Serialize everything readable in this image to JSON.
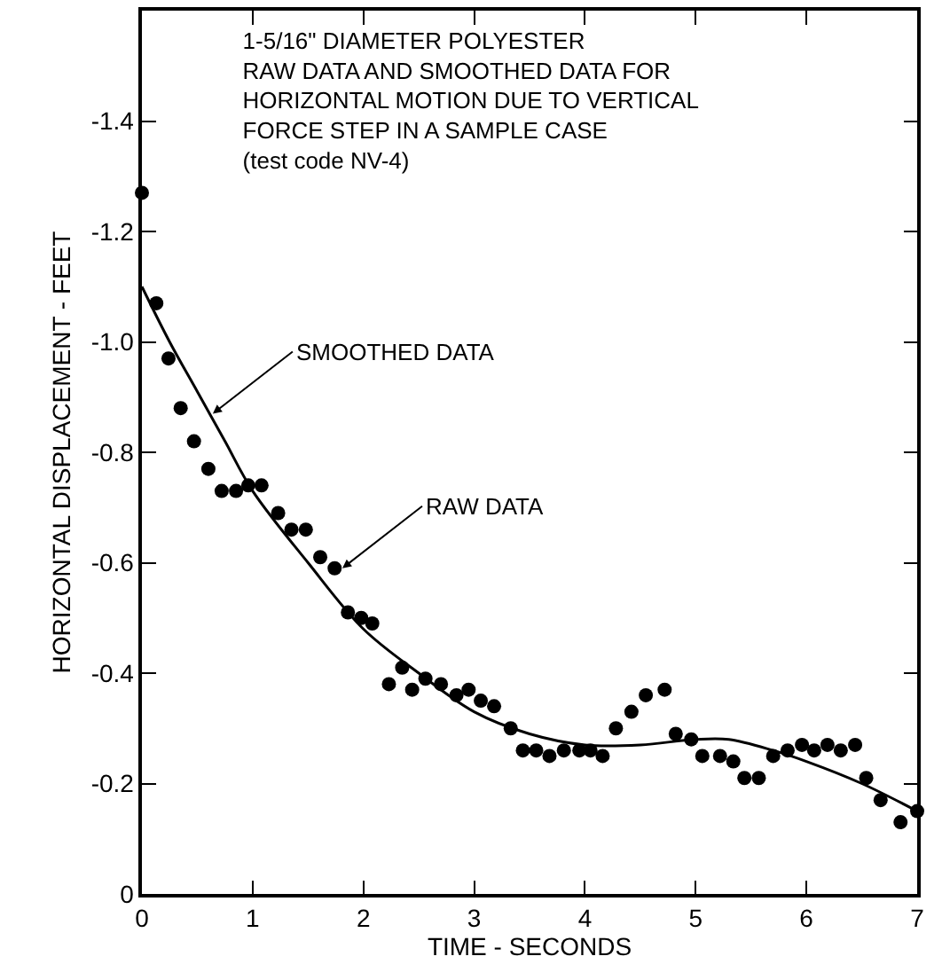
{
  "chart_data": {
    "type": "scatter",
    "title": "1-5/16\" DIAMETER POLYESTER\nRAW DATA AND SMOOTHED DATA FOR\nHORIZONTAL MOTION DUE TO VERTICAL\nFORCE STEP IN A SAMPLE CASE\n(test code NV-4)",
    "xlabel": "TIME - SECONDS",
    "ylabel": "HORIZONTAL DISPLACEMENT - FEET",
    "xlim": [
      0,
      7
    ],
    "ylim": [
      0,
      -1.6
    ],
    "xticks": [
      0,
      1,
      2,
      3,
      4,
      5,
      6,
      7
    ],
    "yticks": [
      0,
      -0.2,
      -0.4,
      -0.6,
      -0.8,
      {
        "value": -1.0,
        "label": "-1.0"
      },
      -1.2,
      -1.4
    ],
    "grid": false,
    "marker": "circle",
    "annotations": [
      {
        "text": "SMOOTHED DATA",
        "x": 0.64,
        "y": -0.87
      },
      {
        "text": "RAW DATA",
        "x": 1.81,
        "y": -0.59
      }
    ],
    "series": [
      {
        "type": "scatter",
        "color": "#000000",
        "x": [
          0,
          0.13,
          0.24,
          0.35,
          0.47,
          0.6,
          0.72,
          0.85,
          0.96,
          1.08,
          1.23,
          1.35,
          1.48,
          1.61,
          1.74,
          1.86,
          1.98,
          2.08,
          2.23,
          2.35,
          2.44,
          2.56,
          2.7,
          2.84,
          2.95,
          3.06,
          3.18,
          3.33,
          3.44,
          3.56,
          3.68,
          3.81,
          3.95,
          4.05,
          4.16,
          4.28,
          4.42,
          4.55,
          4.72,
          4.82,
          4.96,
          5.06,
          5.22,
          5.34,
          5.44,
          5.57,
          5.7,
          5.83,
          5.96,
          6.07,
          6.19,
          6.31,
          6.44,
          6.54,
          6.67,
          6.85,
          7.0
        ],
        "values": [
          -1.27,
          -1.07,
          -0.97,
          -0.88,
          -0.82,
          -0.77,
          -0.73,
          -0.73,
          -0.74,
          -0.74,
          -0.69,
          -0.66,
          -0.66,
          -0.61,
          -0.59,
          -0.51,
          -0.5,
          -0.49,
          -0.38,
          -0.41,
          -0.37,
          -0.39,
          -0.38,
          -0.36,
          -0.37,
          -0.35,
          -0.34,
          -0.3,
          -0.26,
          -0.26,
          -0.25,
          -0.26,
          -0.26,
          -0.26,
          -0.25,
          -0.3,
          -0.33,
          -0.36,
          -0.37,
          -0.29,
          -0.28,
          -0.25,
          -0.25,
          -0.24,
          -0.21,
          -0.21,
          -0.25,
          -0.26,
          -0.27,
          -0.26,
          -0.27,
          -0.26,
          -0.27,
          -0.21,
          -0.17,
          -0.13,
          -0.15
        ]
      },
      {
        "type": "line",
        "color": "#000000",
        "marker": "none",
        "line_style": "solid",
        "x": [
          0,
          0.25,
          0.5,
          0.75,
          1.0,
          1.5,
          2.0,
          2.5,
          3.0,
          3.5,
          4.0,
          4.5,
          5.0,
          5.3,
          5.7,
          6.0,
          6.5,
          7.0
        ],
        "values": [
          -1.1,
          -1.0,
          -0.91,
          -0.82,
          -0.73,
          -0.6,
          -0.48,
          -0.4,
          -0.33,
          -0.29,
          -0.27,
          -0.27,
          -0.28,
          -0.28,
          -0.26,
          -0.24,
          -0.2,
          -0.15
        ]
      }
    ]
  }
}
